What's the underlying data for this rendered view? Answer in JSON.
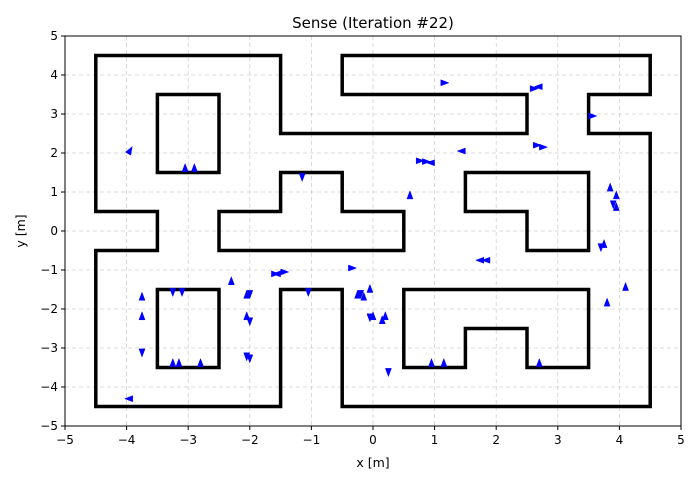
{
  "chart_data": {
    "type": "scatter",
    "title": "Sense (Iteration #22)",
    "xlabel": "x [m]",
    "ylabel": "y [m]",
    "xlim": [
      -5,
      5
    ],
    "ylim": [
      -5,
      5
    ],
    "xticks": [
      -5,
      -4,
      -3,
      -2,
      -1,
      0,
      1,
      2,
      3,
      4,
      5
    ],
    "yticks": [
      -5,
      -4,
      -3,
      -2,
      -1,
      0,
      1,
      2,
      3,
      4,
      5
    ],
    "xtick_labels": [
      "−5",
      "−4",
      "−3",
      "−2",
      "−1",
      "0",
      "1",
      "2",
      "3",
      "4",
      "5"
    ],
    "ytick_labels": [
      "−5",
      "−4",
      "−3",
      "−2",
      "−1",
      "0",
      "1",
      "2",
      "3",
      "4",
      "5"
    ],
    "grid": true,
    "wall_color": "#000000",
    "particle_color": "#0000ff",
    "walls": [
      [
        [
          -4.5,
          4.5
        ],
        [
          -1.5,
          4.5
        ],
        [
          -1.5,
          2.5
        ],
        [
          2.5,
          2.5
        ],
        [
          2.5,
          3.5
        ],
        [
          -0.5,
          3.5
        ],
        [
          -0.5,
          4.5
        ],
        [
          4.5,
          4.5
        ],
        [
          4.5,
          3.5
        ],
        [
          3.5,
          3.5
        ],
        [
          3.5,
          2.5
        ],
        [
          4.5,
          2.5
        ],
        [
          4.5,
          -4.5
        ],
        [
          -0.5,
          -4.5
        ],
        [
          -0.5,
          -1.5
        ],
        [
          -1.5,
          -1.5
        ],
        [
          -1.5,
          -4.5
        ],
        [
          -4.5,
          -4.5
        ],
        [
          -4.5,
          -0.5
        ],
        [
          -3.5,
          -0.5
        ],
        [
          -3.5,
          0.5
        ],
        [
          -4.5,
          0.5
        ],
        [
          -4.5,
          4.5
        ]
      ],
      [
        [
          -3.5,
          3.5
        ],
        [
          -2.5,
          3.5
        ],
        [
          -2.5,
          1.5
        ],
        [
          -3.5,
          1.5
        ],
        [
          -3.5,
          3.5
        ]
      ],
      [
        [
          -2.5,
          -0.5
        ],
        [
          0.5,
          -0.5
        ],
        [
          0.5,
          0.5
        ],
        [
          -0.5,
          0.5
        ],
        [
          -0.5,
          1.5
        ],
        [
          -1.5,
          1.5
        ],
        [
          -1.5,
          0.5
        ],
        [
          -2.5,
          0.5
        ],
        [
          -2.5,
          -0.5
        ]
      ],
      [
        [
          1.5,
          1.5
        ],
        [
          3.5,
          1.5
        ],
        [
          3.5,
          -0.5
        ],
        [
          2.5,
          -0.5
        ],
        [
          2.5,
          0.5
        ],
        [
          1.5,
          0.5
        ],
        [
          1.5,
          1.5
        ]
      ],
      [
        [
          -3.5,
          -1.5
        ],
        [
          -2.5,
          -1.5
        ],
        [
          -2.5,
          -3.5
        ],
        [
          -3.5,
          -3.5
        ],
        [
          -3.5,
          -1.5
        ]
      ],
      [
        [
          0.5,
          -1.5
        ],
        [
          3.5,
          -1.5
        ],
        [
          3.5,
          -3.5
        ],
        [
          2.5,
          -3.5
        ],
        [
          2.5,
          -2.5
        ],
        [
          1.5,
          -2.5
        ],
        [
          1.5,
          -3.5
        ],
        [
          0.5,
          -3.5
        ],
        [
          0.5,
          -1.5
        ]
      ]
    ],
    "particles": [
      {
        "x": -3.95,
        "y": 2.05,
        "heading": 60
      },
      {
        "x": -3.05,
        "y": 1.6,
        "heading": 90
      },
      {
        "x": -2.9,
        "y": 1.6,
        "heading": 90
      },
      {
        "x": 1.15,
        "y": 3.8,
        "heading": 0
      },
      {
        "x": 2.6,
        "y": 3.65,
        "heading": 0
      },
      {
        "x": 2.7,
        "y": 3.7,
        "heading": 180
      },
      {
        "x": 3.55,
        "y": 2.95,
        "heading": 0
      },
      {
        "x": 2.75,
        "y": 2.15,
        "heading": 0
      },
      {
        "x": 2.65,
        "y": 2.2,
        "heading": 0
      },
      {
        "x": 0.75,
        "y": 1.8,
        "heading": 0
      },
      {
        "x": 0.85,
        "y": 1.78,
        "heading": 0
      },
      {
        "x": 0.95,
        "y": 1.75,
        "heading": 180
      },
      {
        "x": 1.45,
        "y": 2.05,
        "heading": 180
      },
      {
        "x": -1.15,
        "y": 1.4,
        "heading": 270
      },
      {
        "x": 0.6,
        "y": 0.9,
        "heading": 90
      },
      {
        "x": 3.85,
        "y": 1.1,
        "heading": 90
      },
      {
        "x": 3.95,
        "y": 0.9,
        "heading": 90
      },
      {
        "x": 3.95,
        "y": 0.6,
        "heading": 90
      },
      {
        "x": 3.9,
        "y": 0.7,
        "heading": 270
      },
      {
        "x": 3.7,
        "y": -0.4,
        "heading": 270
      },
      {
        "x": 3.75,
        "y": -0.35,
        "heading": 90
      },
      {
        "x": 1.75,
        "y": -0.75,
        "heading": 180
      },
      {
        "x": 1.85,
        "y": -0.75,
        "heading": 180
      },
      {
        "x": -1.45,
        "y": -1.05,
        "heading": 0
      },
      {
        "x": -1.6,
        "y": -1.1,
        "heading": 0
      },
      {
        "x": -1.55,
        "y": -1.1,
        "heading": 180
      },
      {
        "x": -0.35,
        "y": -0.95,
        "heading": 0
      },
      {
        "x": -2.3,
        "y": -1.3,
        "heading": 90
      },
      {
        "x": -3.75,
        "y": -1.7,
        "heading": 90
      },
      {
        "x": -3.25,
        "y": -1.55,
        "heading": 270
      },
      {
        "x": -3.1,
        "y": -1.55,
        "heading": 270
      },
      {
        "x": -2.05,
        "y": -1.65,
        "heading": 90
      },
      {
        "x": -2.0,
        "y": -1.6,
        "heading": 270
      },
      {
        "x": -1.05,
        "y": -1.55,
        "heading": 270
      },
      {
        "x": -0.2,
        "y": -1.6,
        "heading": 270
      },
      {
        "x": -0.15,
        "y": -1.7,
        "heading": 90
      },
      {
        "x": -0.25,
        "y": -1.65,
        "heading": 90
      },
      {
        "x": -0.05,
        "y": -1.5,
        "heading": 90
      },
      {
        "x": -0.05,
        "y": -2.2,
        "heading": 270
      },
      {
        "x": 0.0,
        "y": -2.2,
        "heading": 90
      },
      {
        "x": 0.2,
        "y": -2.2,
        "heading": 90
      },
      {
        "x": 0.15,
        "y": -2.3,
        "heading": 90
      },
      {
        "x": -3.75,
        "y": -2.2,
        "heading": 90
      },
      {
        "x": -2.05,
        "y": -2.2,
        "heading": 90
      },
      {
        "x": -2.0,
        "y": -2.3,
        "heading": 270
      },
      {
        "x": -3.75,
        "y": -3.1,
        "heading": 270
      },
      {
        "x": -3.25,
        "y": -3.4,
        "heading": 90
      },
      {
        "x": -3.15,
        "y": -3.4,
        "heading": 90
      },
      {
        "x": -2.8,
        "y": -3.4,
        "heading": 90
      },
      {
        "x": -2.0,
        "y": -3.25,
        "heading": 270
      },
      {
        "x": -2.05,
        "y": -3.2,
        "heading": 270
      },
      {
        "x": 0.25,
        "y": -3.6,
        "heading": 270
      },
      {
        "x": 0.95,
        "y": -3.4,
        "heading": 90
      },
      {
        "x": 1.15,
        "y": -3.4,
        "heading": 90
      },
      {
        "x": 2.7,
        "y": -3.4,
        "heading": 90
      },
      {
        "x": 3.8,
        "y": -1.85,
        "heading": 90
      },
      {
        "x": 4.1,
        "y": -1.45,
        "heading": 90
      },
      {
        "x": -3.95,
        "y": -4.3,
        "heading": 180
      }
    ]
  }
}
